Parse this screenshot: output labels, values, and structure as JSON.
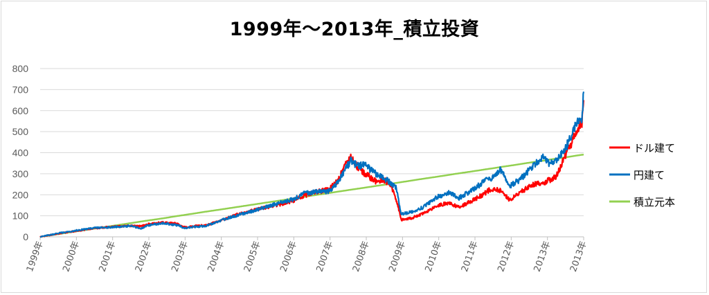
{
  "chart_data": {
    "type": "line",
    "title": "1999年～2013年_積立投資",
    "xlabel": "",
    "ylabel": "",
    "ylim": [
      0,
      800
    ],
    "yticks": [
      "0",
      "100",
      "200",
      "300",
      "400",
      "500",
      "600",
      "700",
      "800"
    ],
    "categories": [
      "1999年",
      "2000年",
      "2001年",
      "2002年",
      "2003年",
      "2004年",
      "2005年",
      "2006年",
      "2007年",
      "2008年",
      "2009年",
      "2010年",
      "2011年",
      "2012年",
      "2013年",
      "2013年"
    ],
    "grid": true,
    "legend_position": "right",
    "x": [
      1999.0,
      1999.5,
      2000.0,
      2000.5,
      2001.0,
      2001.5,
      2001.8,
      2002.0,
      2002.4,
      2002.8,
      2003.0,
      2003.3,
      2003.6,
      2004.0,
      2004.5,
      2005.0,
      2005.5,
      2006.0,
      2006.3,
      2006.6,
      2007.0,
      2007.25,
      2007.45,
      2007.6,
      2007.8,
      2008.0,
      2008.3,
      2008.5,
      2008.7,
      2008.85,
      2009.0,
      2009.3,
      2009.6,
      2010.0,
      2010.3,
      2010.6,
      2011.0,
      2011.3,
      2011.5,
      2011.75,
      2012.0,
      2012.3,
      2012.6,
      2012.9,
      2013.1,
      2013.3,
      2013.55,
      2013.8,
      2014.0,
      2014.05
    ],
    "series": [
      {
        "name": "ドル建て",
        "color": "#ff0000",
        "values": [
          0,
          15,
          28,
          40,
          48,
          52,
          50,
          60,
          68,
          62,
          45,
          52,
          55,
          78,
          108,
          130,
          148,
          172,
          195,
          212,
          225,
          270,
          340,
          378,
          330,
          300,
          262,
          275,
          245,
          185,
          80,
          90,
          110,
          150,
          160,
          140,
          175,
          205,
          230,
          220,
          175,
          210,
          250,
          255,
          270,
          290,
          390,
          480,
          540,
          650
        ]
      },
      {
        "name": "円建て",
        "color": "#0070c0",
        "values": [
          0,
          17,
          30,
          42,
          46,
          52,
          40,
          55,
          65,
          55,
          42,
          48,
          52,
          78,
          105,
          128,
          155,
          178,
          205,
          215,
          218,
          258,
          322,
          360,
          338,
          340,
          300,
          285,
          255,
          235,
          110,
          118,
          140,
          190,
          210,
          185,
          225,
          265,
          280,
          320,
          240,
          275,
          330,
          380,
          345,
          360,
          420,
          520,
          570,
          690
        ]
      },
      {
        "name": "積立元本",
        "color": "#92d050",
        "values": [
          0,
          13,
          26,
          39,
          52,
          65,
          73,
          78,
          88,
          99,
          104,
          112,
          120,
          130,
          143,
          156,
          169,
          182,
          190,
          198,
          208,
          215,
          220,
          224,
          229,
          234,
          242,
          247,
          252,
          256,
          260,
          268,
          276,
          286,
          294,
          302,
          312,
          320,
          325,
          332,
          338,
          346,
          354,
          361,
          367,
          372,
          378,
          385,
          390,
          391
        ]
      }
    ]
  }
}
